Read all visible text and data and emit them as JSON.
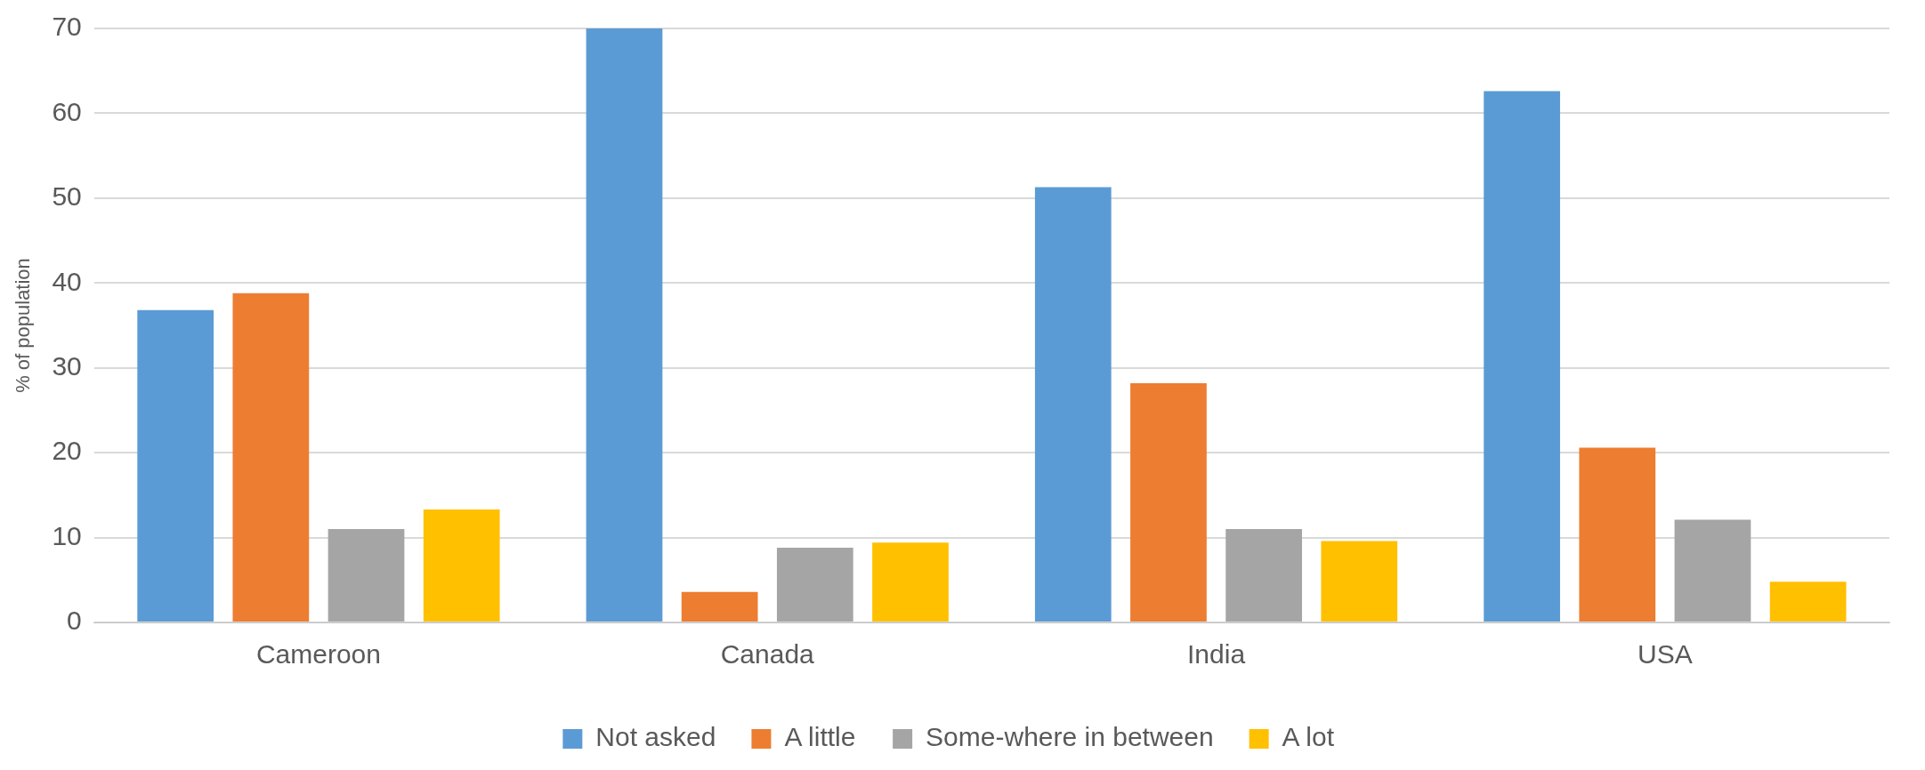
{
  "chart_data": {
    "type": "bar",
    "ylabel": "% of population",
    "categories": [
      "Cameroon",
      "Canada",
      "India",
      "USA"
    ],
    "series": [
      {
        "name": "Not asked",
        "color": "#5b9bd5",
        "values": [
          36.8,
          70,
          51.3,
          62.6
        ]
      },
      {
        "name": "A little",
        "color": "#ed7d31",
        "values": [
          38.8,
          3.6,
          28.2,
          20.6
        ]
      },
      {
        "name": "Some-where in between",
        "color": "#a5a5a5",
        "values": [
          11.0,
          8.8,
          11.0,
          12.1
        ]
      },
      {
        "name": "A lot",
        "color": "#ffc000",
        "values": [
          13.3,
          9.4,
          9.6,
          4.8
        ]
      }
    ],
    "ylim": [
      0,
      70
    ],
    "yticks": [
      0,
      10,
      20,
      30,
      40,
      50,
      60,
      70
    ],
    "grid": "y",
    "legend": "bottom"
  }
}
